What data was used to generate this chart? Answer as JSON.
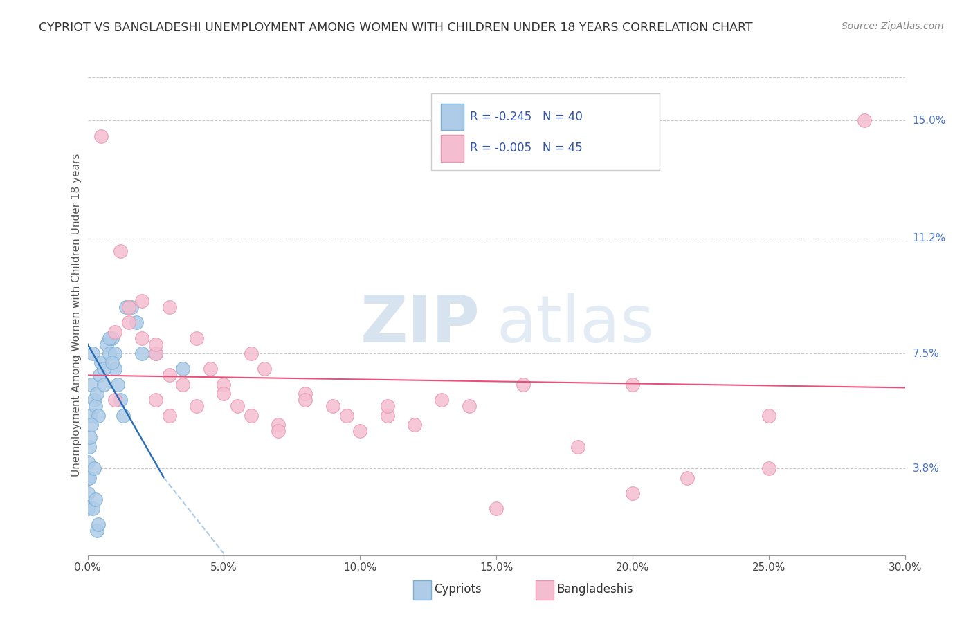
{
  "title": "CYPRIOT VS BANGLADESHI UNEMPLOYMENT AMONG WOMEN WITH CHILDREN UNDER 18 YEARS CORRELATION CHART",
  "source": "Source: ZipAtlas.com",
  "ylabel": "Unemployment Among Women with Children Under 18 years",
  "xlabel_ticks": [
    0.0,
    5.0,
    10.0,
    15.0,
    20.0,
    25.0,
    30.0
  ],
  "xlabel_labels": [
    "0.0%",
    "5.0%",
    "10.0%",
    "15.0%",
    "20.0%",
    "25.0%",
    "30.0%"
  ],
  "ylabel_ticks": [
    3.8,
    7.5,
    11.2,
    15.0
  ],
  "ylabel_labels": [
    "3.8%",
    "7.5%",
    "11.2%",
    "15.0%"
  ],
  "xmin": 0.0,
  "xmax": 30.0,
  "ymin": 1.0,
  "ymax": 16.5,
  "cypriot_color": "#aecce8",
  "bangladeshi_color": "#f5bdd0",
  "cypriot_edge_color": "#7aafd4",
  "bangladeshi_edge_color": "#e895b0",
  "trend_cypriot_color": "#2a6cb5",
  "trend_bangladeshi_color": "#e8507a",
  "legend_R_cypriot": "-0.245",
  "legend_N_cypriot": "40",
  "legend_R_bangladeshi": "-0.005",
  "legend_N_bangladeshi": "45",
  "legend_label_cypriot": "Cypriots",
  "legend_label_bangladeshi": "Bangladeshis",
  "watermark_zip": "ZIP",
  "watermark_atlas": "atlas",
  "cypriot_x": [
    0.0,
    0.0,
    0.05,
    0.1,
    0.15,
    0.2,
    0.25,
    0.3,
    0.35,
    0.4,
    0.45,
    0.5,
    0.6,
    0.7,
    0.8,
    0.9,
    1.0,
    1.1,
    1.2,
    1.3,
    1.4,
    1.6,
    1.8,
    2.0,
    2.5,
    0.0,
    0.0,
    0.05,
    0.1,
    0.15,
    0.2,
    0.25,
    0.3,
    0.35,
    0.4,
    1.0,
    0.6,
    0.8,
    0.9,
    3.5
  ],
  "cypriot_y": [
    3.5,
    2.5,
    4.5,
    5.5,
    6.5,
    7.5,
    6.0,
    5.8,
    6.2,
    5.5,
    6.8,
    7.2,
    6.5,
    7.8,
    7.5,
    8.0,
    7.0,
    6.5,
    6.0,
    5.5,
    9.0,
    9.0,
    8.5,
    7.5,
    7.5,
    4.0,
    3.0,
    3.5,
    4.8,
    5.2,
    2.5,
    3.8,
    2.8,
    1.8,
    2.0,
    7.5,
    7.0,
    8.0,
    7.2,
    7.0
  ],
  "bangladeshi_x": [
    0.5,
    1.0,
    1.2,
    1.5,
    1.5,
    2.0,
    2.0,
    2.5,
    2.5,
    3.0,
    3.0,
    3.5,
    4.0,
    4.5,
    5.0,
    5.5,
    6.0,
    6.5,
    7.0,
    8.0,
    9.0,
    10.0,
    11.0,
    12.0,
    14.0,
    16.0,
    18.0,
    20.0,
    22.0,
    25.0,
    28.5,
    2.5,
    3.0,
    4.0,
    5.0,
    6.0,
    7.0,
    8.0,
    9.5,
    11.0,
    13.0,
    15.0,
    20.0,
    25.0,
    1.0
  ],
  "bangladeshi_y": [
    14.5,
    8.2,
    10.8,
    9.0,
    8.5,
    8.0,
    9.2,
    7.5,
    7.8,
    6.8,
    9.0,
    6.5,
    8.0,
    7.0,
    6.5,
    5.8,
    7.5,
    7.0,
    5.2,
    6.2,
    5.8,
    5.0,
    5.5,
    5.2,
    5.8,
    6.5,
    4.5,
    6.5,
    3.5,
    3.8,
    15.0,
    6.0,
    5.5,
    5.8,
    6.2,
    5.5,
    5.0,
    6.0,
    5.5,
    5.8,
    6.0,
    2.5,
    3.0,
    5.5,
    6.0
  ]
}
